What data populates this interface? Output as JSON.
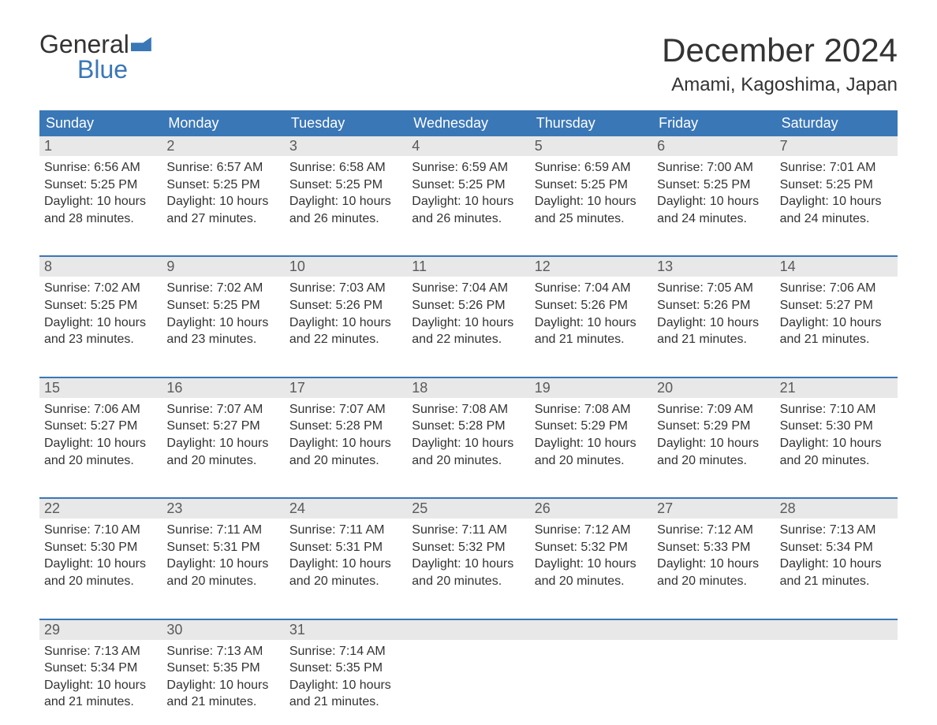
{
  "logo": {
    "word1": "General",
    "word2": "Blue"
  },
  "title": "December 2024",
  "location": "Amami, Kagoshima, Japan",
  "colors": {
    "header_bg": "#3a77b7",
    "header_text": "#ffffff",
    "daynum_bg": "#e8e8e8",
    "daynum_text": "#5a5a5a",
    "body_text": "#333333",
    "week_border": "#3a77b7",
    "page_bg": "#ffffff"
  },
  "typography": {
    "title_fontsize": 42,
    "location_fontsize": 24,
    "weekday_fontsize": 18,
    "daynum_fontsize": 18,
    "cell_fontsize": 16,
    "logo_fontsize": 32
  },
  "weekdays": [
    "Sunday",
    "Monday",
    "Tuesday",
    "Wednesday",
    "Thursday",
    "Friday",
    "Saturday"
  ],
  "weeks": [
    [
      {
        "n": "1",
        "sr": "Sunrise: 6:56 AM",
        "ss": "Sunset: 5:25 PM",
        "d1": "Daylight: 10 hours",
        "d2": "and 28 minutes."
      },
      {
        "n": "2",
        "sr": "Sunrise: 6:57 AM",
        "ss": "Sunset: 5:25 PM",
        "d1": "Daylight: 10 hours",
        "d2": "and 27 minutes."
      },
      {
        "n": "3",
        "sr": "Sunrise: 6:58 AM",
        "ss": "Sunset: 5:25 PM",
        "d1": "Daylight: 10 hours",
        "d2": "and 26 minutes."
      },
      {
        "n": "4",
        "sr": "Sunrise: 6:59 AM",
        "ss": "Sunset: 5:25 PM",
        "d1": "Daylight: 10 hours",
        "d2": "and 26 minutes."
      },
      {
        "n": "5",
        "sr": "Sunrise: 6:59 AM",
        "ss": "Sunset: 5:25 PM",
        "d1": "Daylight: 10 hours",
        "d2": "and 25 minutes."
      },
      {
        "n": "6",
        "sr": "Sunrise: 7:00 AM",
        "ss": "Sunset: 5:25 PM",
        "d1": "Daylight: 10 hours",
        "d2": "and 24 minutes."
      },
      {
        "n": "7",
        "sr": "Sunrise: 7:01 AM",
        "ss": "Sunset: 5:25 PM",
        "d1": "Daylight: 10 hours",
        "d2": "and 24 minutes."
      }
    ],
    [
      {
        "n": "8",
        "sr": "Sunrise: 7:02 AM",
        "ss": "Sunset: 5:25 PM",
        "d1": "Daylight: 10 hours",
        "d2": "and 23 minutes."
      },
      {
        "n": "9",
        "sr": "Sunrise: 7:02 AM",
        "ss": "Sunset: 5:25 PM",
        "d1": "Daylight: 10 hours",
        "d2": "and 23 minutes."
      },
      {
        "n": "10",
        "sr": "Sunrise: 7:03 AM",
        "ss": "Sunset: 5:26 PM",
        "d1": "Daylight: 10 hours",
        "d2": "and 22 minutes."
      },
      {
        "n": "11",
        "sr": "Sunrise: 7:04 AM",
        "ss": "Sunset: 5:26 PM",
        "d1": "Daylight: 10 hours",
        "d2": "and 22 minutes."
      },
      {
        "n": "12",
        "sr": "Sunrise: 7:04 AM",
        "ss": "Sunset: 5:26 PM",
        "d1": "Daylight: 10 hours",
        "d2": "and 21 minutes."
      },
      {
        "n": "13",
        "sr": "Sunrise: 7:05 AM",
        "ss": "Sunset: 5:26 PM",
        "d1": "Daylight: 10 hours",
        "d2": "and 21 minutes."
      },
      {
        "n": "14",
        "sr": "Sunrise: 7:06 AM",
        "ss": "Sunset: 5:27 PM",
        "d1": "Daylight: 10 hours",
        "d2": "and 21 minutes."
      }
    ],
    [
      {
        "n": "15",
        "sr": "Sunrise: 7:06 AM",
        "ss": "Sunset: 5:27 PM",
        "d1": "Daylight: 10 hours",
        "d2": "and 20 minutes."
      },
      {
        "n": "16",
        "sr": "Sunrise: 7:07 AM",
        "ss": "Sunset: 5:27 PM",
        "d1": "Daylight: 10 hours",
        "d2": "and 20 minutes."
      },
      {
        "n": "17",
        "sr": "Sunrise: 7:07 AM",
        "ss": "Sunset: 5:28 PM",
        "d1": "Daylight: 10 hours",
        "d2": "and 20 minutes."
      },
      {
        "n": "18",
        "sr": "Sunrise: 7:08 AM",
        "ss": "Sunset: 5:28 PM",
        "d1": "Daylight: 10 hours",
        "d2": "and 20 minutes."
      },
      {
        "n": "19",
        "sr": "Sunrise: 7:08 AM",
        "ss": "Sunset: 5:29 PM",
        "d1": "Daylight: 10 hours",
        "d2": "and 20 minutes."
      },
      {
        "n": "20",
        "sr": "Sunrise: 7:09 AM",
        "ss": "Sunset: 5:29 PM",
        "d1": "Daylight: 10 hours",
        "d2": "and 20 minutes."
      },
      {
        "n": "21",
        "sr": "Sunrise: 7:10 AM",
        "ss": "Sunset: 5:30 PM",
        "d1": "Daylight: 10 hours",
        "d2": "and 20 minutes."
      }
    ],
    [
      {
        "n": "22",
        "sr": "Sunrise: 7:10 AM",
        "ss": "Sunset: 5:30 PM",
        "d1": "Daylight: 10 hours",
        "d2": "and 20 minutes."
      },
      {
        "n": "23",
        "sr": "Sunrise: 7:11 AM",
        "ss": "Sunset: 5:31 PM",
        "d1": "Daylight: 10 hours",
        "d2": "and 20 minutes."
      },
      {
        "n": "24",
        "sr": "Sunrise: 7:11 AM",
        "ss": "Sunset: 5:31 PM",
        "d1": "Daylight: 10 hours",
        "d2": "and 20 minutes."
      },
      {
        "n": "25",
        "sr": "Sunrise: 7:11 AM",
        "ss": "Sunset: 5:32 PM",
        "d1": "Daylight: 10 hours",
        "d2": "and 20 minutes."
      },
      {
        "n": "26",
        "sr": "Sunrise: 7:12 AM",
        "ss": "Sunset: 5:32 PM",
        "d1": "Daylight: 10 hours",
        "d2": "and 20 minutes."
      },
      {
        "n": "27",
        "sr": "Sunrise: 7:12 AM",
        "ss": "Sunset: 5:33 PM",
        "d1": "Daylight: 10 hours",
        "d2": "and 20 minutes."
      },
      {
        "n": "28",
        "sr": "Sunrise: 7:13 AM",
        "ss": "Sunset: 5:34 PM",
        "d1": "Daylight: 10 hours",
        "d2": "and 21 minutes."
      }
    ],
    [
      {
        "n": "29",
        "sr": "Sunrise: 7:13 AM",
        "ss": "Sunset: 5:34 PM",
        "d1": "Daylight: 10 hours",
        "d2": "and 21 minutes."
      },
      {
        "n": "30",
        "sr": "Sunrise: 7:13 AM",
        "ss": "Sunset: 5:35 PM",
        "d1": "Daylight: 10 hours",
        "d2": "and 21 minutes."
      },
      {
        "n": "31",
        "sr": "Sunrise: 7:14 AM",
        "ss": "Sunset: 5:35 PM",
        "d1": "Daylight: 10 hours",
        "d2": "and 21 minutes."
      },
      null,
      null,
      null,
      null
    ]
  ]
}
